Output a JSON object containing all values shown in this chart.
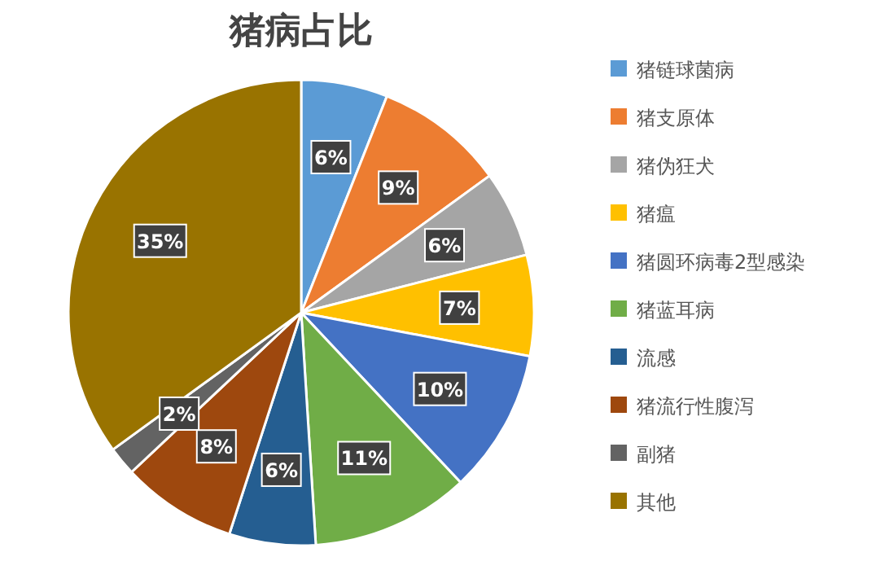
{
  "chart_data": {
    "type": "pie",
    "title": "猪病占比",
    "categories": [
      "猪链球菌病",
      "猪支原体",
      "猪伪狂犬",
      "猪瘟",
      "猪圆环病毒2型感染",
      "猪蓝耳病",
      "流感",
      "猪流行性腹泻",
      "副猪",
      "其他"
    ],
    "values": [
      6,
      9,
      6,
      7,
      10,
      11,
      6,
      8,
      2,
      35
    ],
    "colors": [
      "#5b9bd5",
      "#ed7d31",
      "#a5a5a5",
      "#ffc000",
      "#4472c4",
      "#70ad47",
      "#255e91",
      "#9e480e",
      "#636363",
      "#997300"
    ],
    "value_labels": [
      "6%",
      "9%",
      "6%",
      "7%",
      "10%",
      "11%",
      "6%",
      "8%",
      "2%",
      "35%"
    ],
    "legend": "right"
  }
}
